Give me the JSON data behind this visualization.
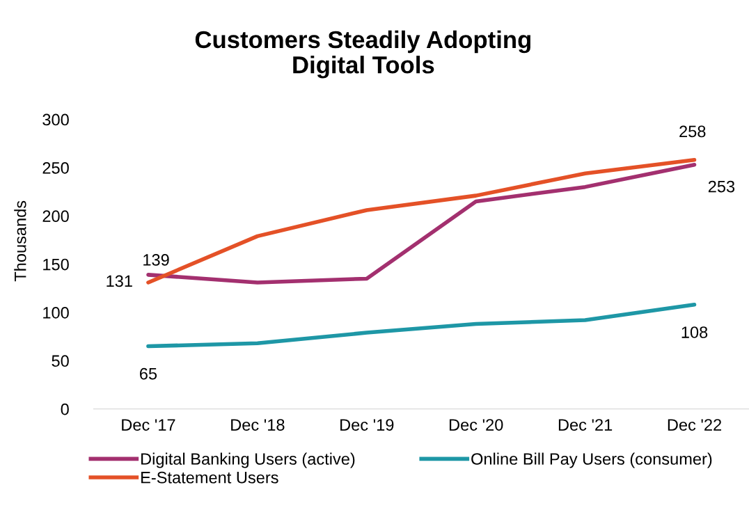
{
  "chart_data": {
    "type": "line",
    "title": "Customers Steadily Adopting\nDigital Tools",
    "ylabel": "Thousands",
    "categories": [
      "Dec '17",
      "Dec '18",
      "Dec '19",
      "Dec '20",
      "Dec '21",
      "Dec '22"
    ],
    "series": [
      {
        "name": "Digital Banking Users (active)",
        "color": "#a3306f",
        "values": [
          139,
          131,
          135,
          215,
          230,
          253
        ],
        "value_labels": [
          "139",
          null,
          null,
          null,
          null,
          "253"
        ]
      },
      {
        "name": "Online Bill Pay Users (consumer)",
        "color": "#1e97a6",
        "values": [
          65,
          68,
          79,
          88,
          92,
          108
        ],
        "value_labels": [
          "65",
          null,
          null,
          null,
          null,
          "108"
        ]
      },
      {
        "name": "E-Statement Users",
        "color": "#e45127",
        "values": [
          131,
          179,
          206,
          221,
          244,
          258
        ],
        "value_labels": [
          "131",
          null,
          null,
          null,
          null,
          "258"
        ]
      }
    ],
    "ylim": [
      0,
      300
    ],
    "yticks": [
      0,
      50,
      100,
      150,
      200,
      250,
      300
    ],
    "grid": false,
    "legend": "bottom",
    "marker": "none",
    "line_style": "solid"
  }
}
